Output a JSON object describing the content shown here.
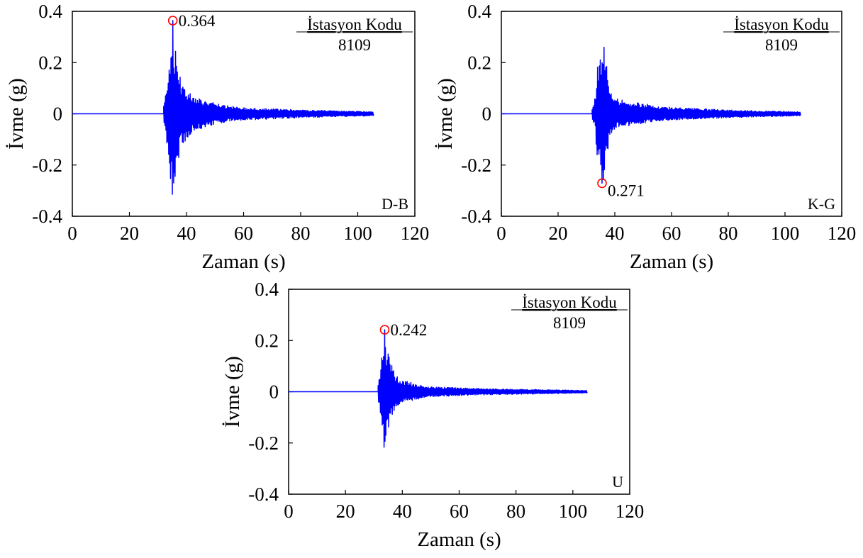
{
  "chart_data": [
    {
      "type": "line",
      "xlabel": "Zaman (s)",
      "ylabel": "İvme (g)",
      "xlim": [
        0,
        120
      ],
      "ylim": [
        -0.4,
        0.4
      ],
      "x_ticks": [
        "0",
        "20",
        "40",
        "60",
        "80",
        "100",
        "120"
      ],
      "y_ticks": [
        "0.4",
        "0.2",
        "0",
        "-0.2",
        "-0.4"
      ],
      "station_label": "İstasyon Kodu",
      "station_code": "8109",
      "component": "D-B",
      "grid": false,
      "peak": {
        "t": 35.2,
        "value": 0.364,
        "label": "0.364"
      },
      "series": [
        {
          "color": "#0000ff",
          "start_t": 0,
          "onset_t": 32,
          "end_t": 105.5,
          "envelope": [
            [
              32,
              0.04
            ],
            [
              33,
              0.12
            ],
            [
              34,
              0.2
            ],
            [
              35,
              0.364
            ],
            [
              36,
              0.26
            ],
            [
              37,
              0.2
            ],
            [
              38,
              0.13
            ],
            [
              40,
              0.1
            ],
            [
              42,
              0.07
            ],
            [
              45,
              0.06
            ],
            [
              50,
              0.04
            ],
            [
              55,
              0.03
            ],
            [
              60,
              0.025
            ],
            [
              70,
              0.02
            ],
            [
              80,
              0.015
            ],
            [
              90,
              0.012
            ],
            [
              105.5,
              0.008
            ]
          ],
          "min_peak": {
            "t": 35.5,
            "value": -0.27
          }
        }
      ]
    },
    {
      "type": "line",
      "xlabel": "Zaman (s)",
      "ylabel": "İvme (g)",
      "xlim": [
        0,
        120
      ],
      "ylim": [
        -0.4,
        0.4
      ],
      "x_ticks": [
        "0",
        "20",
        "40",
        "60",
        "80",
        "100",
        "120"
      ],
      "y_ticks": [
        "0.4",
        "0.2",
        "0",
        "-0.2",
        "-0.4"
      ],
      "station_label": "İstasyon Kodu",
      "station_code": "8109",
      "component": "K-G",
      "grid": false,
      "peak": {
        "t": 35.5,
        "value": -0.271,
        "label": "0.271"
      },
      "series": [
        {
          "color": "#0000ff",
          "start_t": 0,
          "onset_t": 32,
          "end_t": 105.5,
          "envelope": [
            [
              32,
              0.02
            ],
            [
              33,
              0.06
            ],
            [
              34,
              0.2
            ],
            [
              35,
              0.26
            ],
            [
              36,
              0.26
            ],
            [
              37,
              0.2
            ],
            [
              38,
              0.1
            ],
            [
              40,
              0.06
            ],
            [
              45,
              0.05
            ],
            [
              50,
              0.04
            ],
            [
              55,
              0.03
            ],
            [
              60,
              0.025
            ],
            [
              70,
              0.02
            ],
            [
              80,
              0.015
            ],
            [
              90,
              0.012
            ],
            [
              105.5,
              0.008
            ]
          ],
          "max_peak": {
            "t": 36.2,
            "value": 0.26
          }
        }
      ]
    },
    {
      "type": "line",
      "xlabel": "Zaman (s)",
      "ylabel": "İvme (g)",
      "xlim": [
        0,
        120
      ],
      "ylim": [
        -0.4,
        0.4
      ],
      "x_ticks": [
        "0",
        "20",
        "40",
        "60",
        "80",
        "100",
        "120"
      ],
      "y_ticks": [
        "0.4",
        "0.2",
        "0",
        "-0.2",
        "-0.4"
      ],
      "station_label": "İstasyon Kodu",
      "station_code": "8109",
      "component": "U",
      "grid": false,
      "peak": {
        "t": 33.8,
        "value": 0.242,
        "label": "0.242"
      },
      "series": [
        {
          "color": "#0000ff",
          "start_t": 0,
          "onset_t": 31.5,
          "end_t": 105,
          "envelope": [
            [
              31.5,
              0.03
            ],
            [
              32.5,
              0.1
            ],
            [
              33.5,
              0.242
            ],
            [
              34.5,
              0.17
            ],
            [
              35.5,
              0.14
            ],
            [
              37,
              0.08
            ],
            [
              39,
              0.05
            ],
            [
              42,
              0.04
            ],
            [
              45,
              0.03
            ],
            [
              50,
              0.02
            ],
            [
              60,
              0.015
            ],
            [
              70,
              0.012
            ],
            [
              80,
              0.01
            ],
            [
              90,
              0.008
            ],
            [
              105,
              0.005
            ]
          ],
          "min_peak": {
            "t": 34.2,
            "value": -0.17
          }
        }
      ]
    }
  ],
  "colors": {
    "trace": "#0000ff",
    "peak_marker": "#ff0000",
    "axis": "#000000"
  }
}
